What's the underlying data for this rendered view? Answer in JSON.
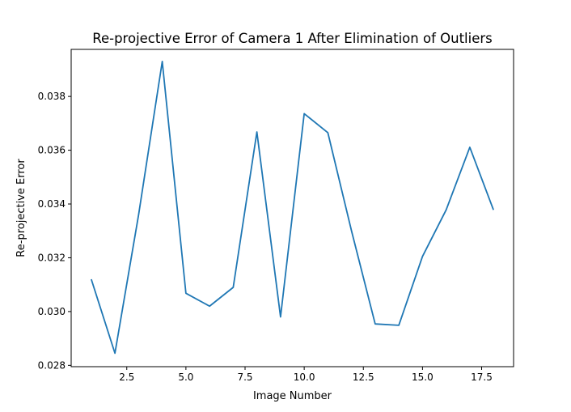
{
  "chart_data": {
    "type": "line",
    "title": "Re-projective Error of Camera 1 After Elimination of Outliers",
    "xlabel": "Image Number",
    "ylabel": "Re-projective Error",
    "xlim": [
      0.15,
      18.85
    ],
    "ylim": [
      0.02795,
      0.03975
    ],
    "xticks": [
      2.5,
      5.0,
      7.5,
      10.0,
      12.5,
      15.0,
      17.5
    ],
    "xtick_labels": [
      "2.5",
      "5.0",
      "7.5",
      "10.0",
      "12.5",
      "15.0",
      "17.5"
    ],
    "yticks": [
      0.028,
      0.03,
      0.032,
      0.034,
      0.036,
      0.038
    ],
    "ytick_labels": [
      "0.028",
      "0.030",
      "0.032",
      "0.034",
      "0.036",
      "0.038"
    ],
    "grid": false,
    "color": "#1f77b4",
    "series": [
      {
        "x": [
          1,
          2,
          3,
          4,
          5,
          6,
          7,
          8,
          9,
          10,
          11,
          12,
          13,
          14,
          15,
          16,
          17,
          18
        ],
        "y": [
          0.0312,
          0.02845,
          0.0336,
          0.0393,
          0.03068,
          0.0302,
          0.0309,
          0.03668,
          0.0298,
          0.03736,
          0.03665,
          0.033,
          0.02954,
          0.02949,
          0.03205,
          0.03378,
          0.03611,
          0.03378
        ]
      }
    ]
  }
}
